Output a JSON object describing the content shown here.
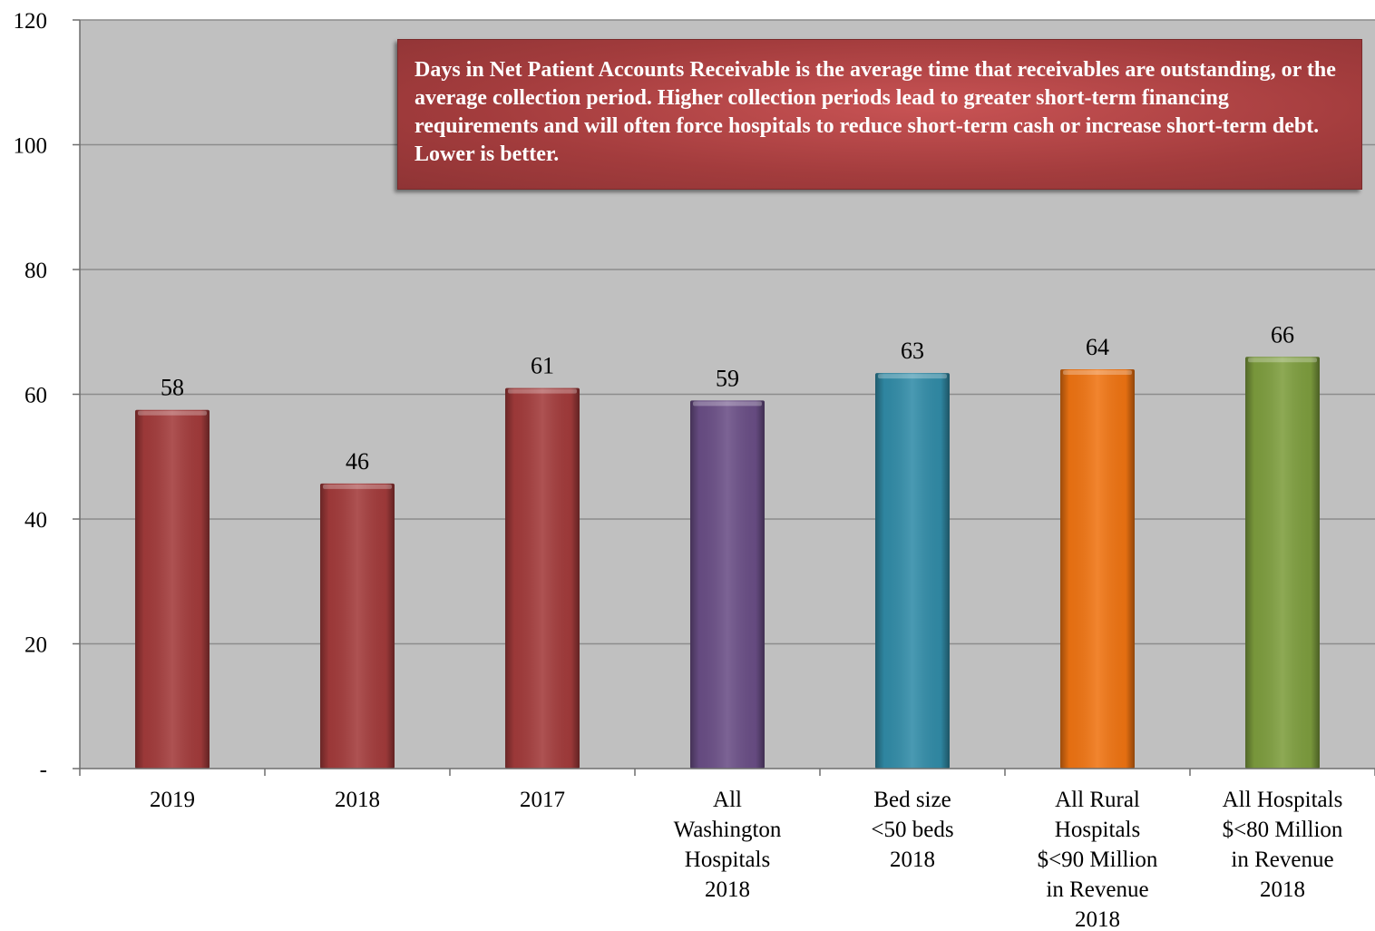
{
  "chart_data": {
    "type": "bar",
    "categories": [
      "2019",
      "2018",
      "2017",
      "All Washington Hospitals 2018",
      "Bed size <50 beds 2018",
      "All Rural Hospitals $<90 Million in Revenue 2018",
      "All Hospitals $<80 Million in Revenue 2018"
    ],
    "category_lines": [
      [
        "2019"
      ],
      [
        "2018"
      ],
      [
        "2017"
      ],
      [
        "All",
        "Washington",
        "Hospitals",
        "2018"
      ],
      [
        "Bed size",
        "<50 beds",
        "2018"
      ],
      [
        "All Rural",
        "Hospitals",
        "$<90 Million",
        "in Revenue",
        "2018"
      ],
      [
        "All Hospitals",
        "$<80 Million",
        "in Revenue",
        "2018"
      ]
    ],
    "values": [
      57.5,
      45.7,
      61,
      59,
      63.4,
      64,
      66
    ],
    "data_labels": [
      "58",
      "46",
      "61",
      "59",
      "63",
      "64",
      "66"
    ],
    "colors": [
      "#a33b3b",
      "#a33b3b",
      "#a33b3b",
      "#6a4e86",
      "#318ca8",
      "#f07412",
      "#7e9e3e"
    ],
    "ylim": [
      0,
      120
    ],
    "yticks": [
      0,
      20,
      40,
      60,
      80,
      100,
      120
    ],
    "ytick_labels": [
      "-",
      "20",
      "40",
      "60",
      "80",
      "100",
      "120"
    ],
    "grid": true,
    "plot_background": "#c0c0c0",
    "annotation": "Days in Net Patient Accounts Receivable is the average time that receivables are outstanding, or the average collection period. Higher collection periods lead to greater short-term financing requirements and will often force hospitals to reduce short-term cash or increase short-term debt. Lower is better."
  }
}
